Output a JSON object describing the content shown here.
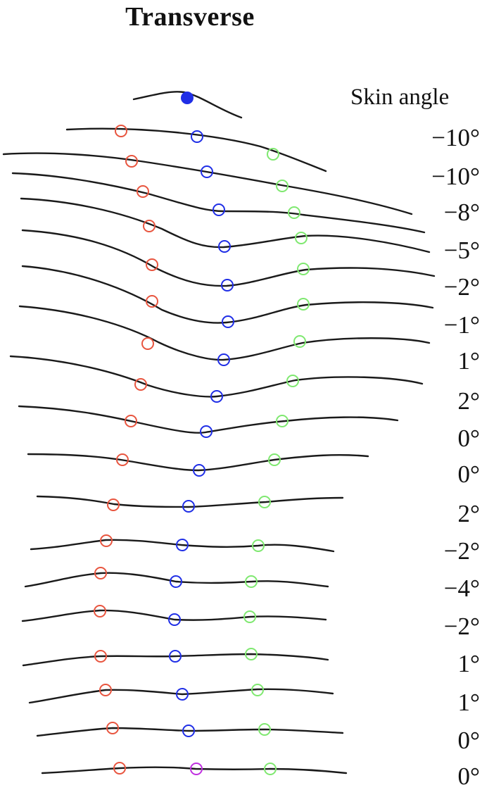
{
  "title": "Transverse",
  "header": "Skin angle",
  "rows": [
    {
      "angle": ""
    },
    {
      "angle": "−10°"
    },
    {
      "angle": "−10°"
    },
    {
      "angle": "−8°"
    },
    {
      "angle": "−5°"
    },
    {
      "angle": "−2°"
    },
    {
      "angle": "−1°"
    },
    {
      "angle": "1°"
    },
    {
      "angle": "2°"
    },
    {
      "angle": "0°"
    },
    {
      "angle": "0°"
    },
    {
      "angle": "2°"
    },
    {
      "angle": "−2°"
    },
    {
      "angle": "−4°"
    },
    {
      "angle": "−2°"
    },
    {
      "angle": "1°"
    },
    {
      "angle": "1°"
    },
    {
      "angle": "0°"
    },
    {
      "angle": "0°"
    }
  ],
  "colors": {
    "curve": "#1a1a1a",
    "left_marker": "#e8553f",
    "center_marker": "#1f2ee6",
    "right_marker": "#7fe870",
    "bottom_center_marker": "#c030e0"
  }
}
